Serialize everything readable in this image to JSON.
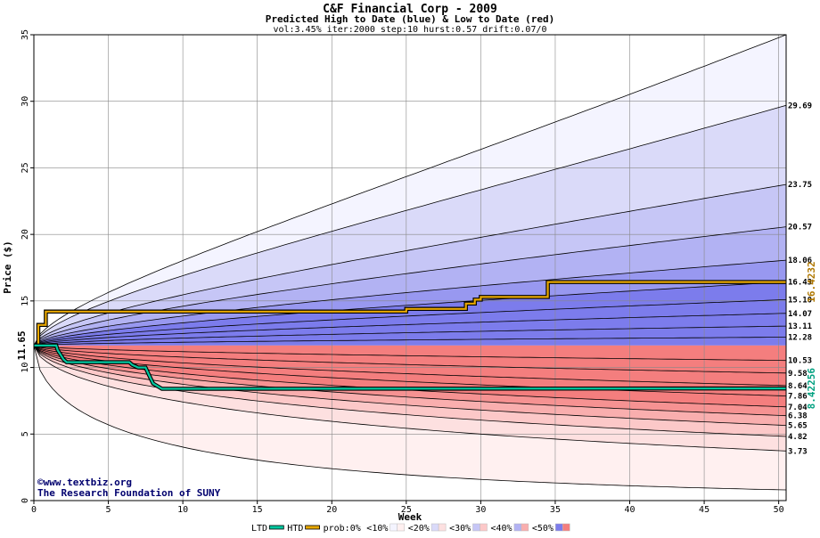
{
  "chart_data": {
    "type": "area",
    "title": "C&F Financial Corp - 2009",
    "subtitle": "Predicted High to Date (blue) &  Low to Date (red)",
    "params": "vol:3.45% iter:2000 step:10 hurst:0.57 drift:0.07/0",
    "xlabel": "Week",
    "ylabel": "Price ($)",
    "xlim": [
      0,
      50.5
    ],
    "ylim": [
      0,
      35
    ],
    "x_ticks": [
      0,
      5,
      10,
      15,
      20,
      25,
      30,
      35,
      40,
      45,
      50
    ],
    "y_ticks": [
      0,
      5,
      10,
      15,
      20,
      25,
      30,
      35
    ],
    "start_price": 11.65,
    "start_label": "11.65",
    "grid": true,
    "high_percentile_end_values": [
      35.0,
      29.69,
      23.75,
      20.57,
      18.06,
      16.43,
      15.1,
      14.07,
      13.11,
      12.28
    ],
    "high_percentile_labels": [
      "29.69",
      "23.75",
      "20.57",
      "18.06",
      "16.43",
      "15.10",
      "14.07",
      "13.11",
      "12.28"
    ],
    "low_percentile_end_values": [
      10.53,
      9.58,
      8.64,
      7.86,
      7.04,
      6.38,
      5.65,
      4.82,
      3.73,
      0.8
    ],
    "low_percentile_labels": [
      "10.53",
      "9.58",
      "8.64",
      "7.86",
      "7.04",
      "6.38",
      "5.65",
      "4.82",
      "3.73"
    ],
    "htd_series": {
      "name": "HTD",
      "color": "#e8a800",
      "points": [
        [
          0,
          11.65
        ],
        [
          0.3,
          11.65
        ],
        [
          0.3,
          13.2
        ],
        [
          0.8,
          13.2
        ],
        [
          0.8,
          14.2
        ],
        [
          25,
          14.2
        ],
        [
          25,
          14.4
        ],
        [
          29,
          14.4
        ],
        [
          29,
          14.8
        ],
        [
          29.6,
          14.8
        ],
        [
          29.6,
          15.1
        ],
        [
          30,
          15.1
        ],
        [
          30,
          15.3
        ],
        [
          34.5,
          15.3
        ],
        [
          34.5,
          16.4232
        ],
        [
          50.5,
          16.4232
        ]
      ],
      "end_label": "16.4232"
    },
    "ltd_series": {
      "name": "LTD",
      "color": "#00c8a0",
      "points": [
        [
          0,
          11.65
        ],
        [
          1.5,
          11.65
        ],
        [
          1.6,
          11.3
        ],
        [
          2.0,
          10.6
        ],
        [
          2.2,
          10.4
        ],
        [
          2.5,
          10.4
        ],
        [
          6.4,
          10.4
        ],
        [
          6.6,
          10.2
        ],
        [
          7.0,
          10.0
        ],
        [
          7.5,
          10.0
        ],
        [
          7.7,
          9.5
        ],
        [
          8.0,
          8.8
        ],
        [
          8.3,
          8.6
        ],
        [
          8.6,
          8.4
        ],
        [
          50.5,
          8.42256
        ]
      ],
      "end_label": "8.42256"
    },
    "band_colors": {
      "high": [
        "#f4f4ff",
        "#dadaf9",
        "#c6c6f6",
        "#b2b2f3",
        "#9898f0",
        "#7c7cec"
      ],
      "low": [
        "#fff0f0",
        "#fde0e0",
        "#fcc8c8",
        "#f9aeae",
        "#f69292",
        "#f47e7e"
      ]
    },
    "legend": {
      "placement": "bottom",
      "items": [
        {
          "label": "LTD",
          "kind": "line",
          "color": "#00c8a0"
        },
        {
          "label": "HTD",
          "kind": "line",
          "color": "#e8a800"
        },
        {
          "label": "prob:0%",
          "kind": "none",
          "color": ""
        },
        {
          "label": "<10%",
          "kind": "swatch",
          "color": "#f4f4ff",
          "color2": "#fff0f0"
        },
        {
          "label": "<20%",
          "kind": "swatch",
          "color": "#dadaf9",
          "color2": "#fde0e0"
        },
        {
          "label": "<30%",
          "kind": "swatch",
          "color": "#c6c6f6",
          "color2": "#fcc8c8"
        },
        {
          "label": "<40%",
          "kind": "swatch",
          "color": "#b2b2f3",
          "color2": "#f9aeae"
        },
        {
          "label": "<50%",
          "kind": "swatch",
          "color": "#7c7cec",
          "color2": "#f47e7e"
        }
      ]
    }
  },
  "footer": {
    "line1": "©www.textbiz.org",
    "line2": "The Research Foundation of SUNY"
  }
}
